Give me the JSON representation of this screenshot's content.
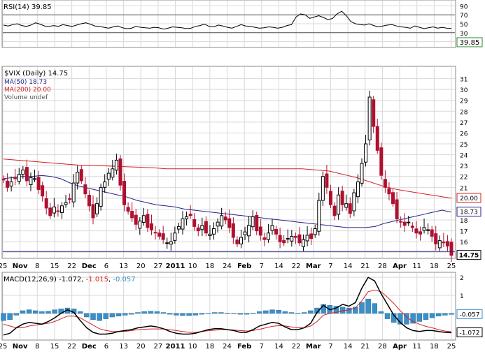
{
  "chart_data": [
    {
      "type": "line",
      "panel": "rsi",
      "legend": "RSI(14) 39.85",
      "ylim": [
        0,
        100
      ],
      "ticks": [
        "90",
        "70",
        "50",
        "30",
        "10"
      ],
      "reference_lines": [
        70,
        30
      ],
      "last_value_label": "39.85",
      "values": [
        47,
        45,
        48,
        50,
        46,
        44,
        47,
        52,
        49,
        45,
        44,
        46,
        44,
        48,
        46,
        44,
        47,
        50,
        52,
        49,
        45,
        44,
        42,
        40,
        43,
        45,
        41,
        39,
        40,
        44,
        42,
        41,
        40,
        42,
        41,
        38,
        40,
        43,
        42,
        41,
        39,
        40,
        44,
        46,
        49,
        44,
        43,
        47,
        45,
        42,
        40,
        44,
        48,
        45,
        44,
        42,
        40,
        41,
        43,
        42,
        40,
        42,
        46,
        48,
        65,
        72,
        70,
        62,
        65,
        68,
        64,
        59,
        62,
        72,
        78,
        68,
        55,
        50,
        48,
        47,
        50,
        46,
        43,
        45,
        47,
        48,
        45,
        43,
        42,
        40,
        45,
        42,
        39,
        41,
        43,
        40,
        42,
        40,
        39.85
      ]
    },
    {
      "type": "candlestick",
      "panel": "price",
      "legend": "$VIX (Daily) 14.75",
      "ma_legends": [
        {
          "name": "MA(50)",
          "value": "18.73",
          "color": "#222288"
        },
        {
          "name": "MA(200)",
          "value": "20.00",
          "color": "#d42020"
        }
      ],
      "volume_legend": "Volume undef",
      "ylim": [
        14.6,
        32
      ],
      "ticks": [
        "31",
        "30",
        "29",
        "28",
        "27",
        "26",
        "25",
        "24",
        "23",
        "22",
        "21",
        "20",
        "19",
        "18",
        "17",
        "16",
        "15"
      ],
      "x_labels": [
        "25",
        "Nov",
        "8",
        "15",
        "22",
        "Dec",
        "6",
        "13",
        "20",
        "27",
        "2011",
        "10",
        "18",
        "24",
        "Feb",
        "7",
        "14",
        "22",
        "Mar",
        "7",
        "14",
        "21",
        "28",
        "Apr",
        "11",
        "18",
        "25"
      ],
      "horizontal_line": 15.1,
      "closes": [
        21.7,
        21.0,
        21.5,
        21.8,
        22.2,
        22.6,
        21.6,
        21.9,
        21.8,
        20.8,
        20.2,
        19.1,
        18.4,
        19.2,
        18.8,
        19.3,
        19.6,
        19.9,
        21.4,
        22.4,
        21.6,
        20.4,
        19.3,
        18.2,
        19.5,
        21.0,
        21.5,
        22.3,
        22.7,
        23.5,
        21.2,
        19.4,
        18.8,
        18.2,
        17.6,
        17.9,
        18.4,
        17.3,
        17.1,
        16.8,
        16.5,
        16.2,
        15.9,
        16.0,
        16.8,
        17.4,
        18.1,
        18.3,
        18.4,
        17.4,
        17.0,
        17.5,
        16.8,
        16.7,
        17.2,
        17.8,
        18.4,
        18.0,
        17.3,
        16.4,
        15.8,
        16.4,
        16.9,
        17.5,
        18.3,
        17.0,
        16.6,
        16.2,
        16.8,
        17.5,
        16.7,
        16.0,
        15.9,
        16.3,
        16.5,
        16.4,
        15.9,
        16.2,
        16.6,
        16.3,
        17.2,
        19.8,
        22.0,
        21.0,
        19.4,
        18.4,
        20.3,
        19.4,
        19.5,
        18.6,
        20.5,
        21.5,
        23.2,
        25.0,
        29.3,
        26.6,
        24.4,
        22.1,
        21.0,
        20.4,
        19.5,
        18.1,
        17.8,
        17.5,
        17.8,
        17.3,
        16.8,
        16.7,
        17.3,
        17.1,
        16.5,
        15.8,
        16.1,
        15.9,
        15.6,
        14.75
      ],
      "ma50": [
        21.8,
        21.9,
        22.0,
        22.0,
        22.1,
        22.0,
        21.8,
        21.4,
        21.1,
        20.9,
        20.7,
        20.5,
        20.3,
        20.1,
        19.8,
        19.6,
        19.4,
        19.3,
        19.2,
        19.0,
        18.9,
        18.8,
        18.7,
        18.6,
        18.5,
        18.4,
        18.3,
        18.2,
        18.1,
        18.0,
        17.9,
        17.8,
        17.7,
        17.6,
        17.5,
        17.4,
        17.3,
        17.3,
        17.3,
        17.4,
        17.7,
        17.9,
        18.1,
        18.3,
        18.5,
        18.7,
        18.9,
        18.73
      ],
      "ma200": [
        23.6,
        23.5,
        23.4,
        23.3,
        23.2,
        23.1,
        23.0,
        23.0,
        22.95,
        22.9,
        22.85,
        22.8,
        22.7,
        22.7,
        22.7,
        22.7,
        22.7,
        22.7,
        22.7,
        22.7,
        22.7,
        22.7,
        22.7,
        22.6,
        22.5,
        22.2,
        21.9,
        21.5,
        21.1,
        20.8,
        20.6,
        20.4,
        20.2,
        20.0
      ]
    },
    {
      "type": "line",
      "panel": "macd",
      "legend": {
        "prefix": "MACD(12,26,9)",
        "macd": "-1.072",
        "signal": "-1.015",
        "histogram": "-0.057"
      },
      "ylim": [
        -1.4,
        2.2
      ],
      "ticks": [
        "2",
        "1",
        "0"
      ],
      "last_value_labels": [
        "-0.057",
        "-1.072"
      ],
      "x_labels": [
        "25",
        "Nov",
        "8",
        "15",
        "22",
        "Dec",
        "6",
        "13",
        "20",
        "27",
        "2011",
        "10",
        "18",
        "24",
        "Feb",
        "7",
        "14",
        "22",
        "Mar",
        "7",
        "14",
        "21",
        "28",
        "Apr",
        "11",
        "18",
        "25"
      ],
      "macd": [
        -1.2,
        -1.1,
        -0.8,
        -0.6,
        -0.5,
        -0.55,
        -0.6,
        -0.45,
        -0.25,
        0.0,
        0.2,
        0.05,
        -0.4,
        -0.8,
        -1.05,
        -1.15,
        -1.15,
        -1.1,
        -1.0,
        -0.95,
        -0.9,
        -0.8,
        -0.75,
        -0.7,
        -0.75,
        -0.85,
        -1.0,
        -1.1,
        -1.15,
        -1.15,
        -1.1,
        -1.0,
        -0.9,
        -0.85,
        -0.85,
        -0.9,
        -0.95,
        -1.05,
        -1.05,
        -0.9,
        -0.7,
        -0.6,
        -0.5,
        -0.55,
        -0.75,
        -0.9,
        -0.9,
        -0.8,
        -0.55,
        0.05,
        0.45,
        0.2,
        0.3,
        0.5,
        0.4,
        0.6,
        1.4,
        2.0,
        1.8,
        1.1,
        0.5,
        -0.1,
        -0.5,
        -0.8,
        -0.95,
        -1.0,
        -0.95,
        -0.95,
        -1.0,
        -1.05,
        -1.072
      ],
      "signal": [
        -0.6,
        -0.7,
        -0.8,
        -0.8,
        -0.7,
        -0.65,
        -0.6,
        -0.55,
        -0.45,
        -0.3,
        -0.15,
        -0.15,
        -0.25,
        -0.45,
        -0.65,
        -0.85,
        -0.95,
        -1.0,
        -1.0,
        -1.0,
        -0.95,
        -0.9,
        -0.88,
        -0.86,
        -0.86,
        -0.87,
        -0.9,
        -0.95,
        -1.0,
        -1.05,
        -1.05,
        -1.0,
        -0.96,
        -0.93,
        -0.9,
        -0.9,
        -0.92,
        -0.95,
        -0.98,
        -0.95,
        -0.88,
        -0.8,
        -0.72,
        -0.68,
        -0.7,
        -0.75,
        -0.8,
        -0.8,
        -0.7,
        -0.45,
        -0.1,
        0.0,
        0.05,
        0.15,
        0.2,
        0.3,
        0.7,
        1.2,
        1.3,
        1.2,
        0.9,
        0.55,
        0.15,
        -0.2,
        -0.45,
        -0.6,
        -0.72,
        -0.8,
        -0.9,
        -0.98,
        -1.015
      ],
      "histogram": [
        -0.4,
        -0.35,
        -0.1,
        0.15,
        0.2,
        0.15,
        0.1,
        0.12,
        0.2,
        0.25,
        0.3,
        0.25,
        0.1,
        -0.2,
        -0.35,
        -0.4,
        -0.3,
        -0.2,
        -0.15,
        -0.1,
        -0.05,
        0.05,
        0.1,
        0.12,
        0.1,
        0.05,
        -0.05,
        -0.1,
        -0.12,
        -0.12,
        -0.1,
        -0.05,
        0.0,
        0.05,
        0.05,
        0.02,
        -0.02,
        -0.05,
        -0.05,
        0.02,
        0.1,
        0.15,
        0.2,
        0.18,
        0.1,
        0.05,
        0.02,
        0.05,
        0.15,
        0.3,
        0.5,
        0.45,
        0.4,
        0.35,
        0.3,
        0.35,
        0.6,
        0.8,
        0.55,
        0.1,
        -0.3,
        -0.5,
        -0.6,
        -0.6,
        -0.55,
        -0.45,
        -0.35,
        -0.25,
        -0.15,
        -0.1,
        -0.057
      ]
    }
  ],
  "colors": {
    "up": "#000000",
    "down": "#b01030",
    "ma50": "#222288",
    "ma200": "#d42020",
    "macd": "#000000",
    "signal": "#d42020",
    "histogram": "#3a8fc8",
    "grid": "#d8d8d8"
  }
}
